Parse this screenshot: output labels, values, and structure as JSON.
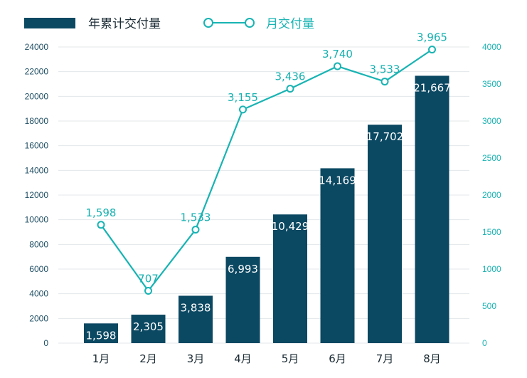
{
  "chart_data": {
    "type": "bar",
    "categories": [
      "1月",
      "2月",
      "3月",
      "4月",
      "5月",
      "6月",
      "7月",
      "8月"
    ],
    "series": [
      {
        "name": "年累计交付量",
        "type": "bar",
        "axis": "left",
        "color": "#0b4862",
        "values": [
          1598,
          2305,
          3838,
          6993,
          10429,
          14169,
          17702,
          21667
        ],
        "labels": [
          "1,598",
          "2,305",
          "3,838",
          "6,993",
          "10,429",
          "14,169",
          "17,702",
          "21,667"
        ]
      },
      {
        "name": "月交付量",
        "type": "line",
        "axis": "right",
        "color": "#19b3b3",
        "values": [
          1598,
          707,
          1533,
          3155,
          3436,
          3740,
          3533,
          3965
        ],
        "labels": [
          "1,598",
          "707",
          "1,533",
          "3,155",
          "3,436",
          "3,740",
          "3,533",
          "3,965"
        ]
      }
    ],
    "y_left": {
      "ylim": [
        0,
        24000
      ],
      "ticks": [
        "0",
        "2000",
        "4000",
        "6000",
        "8000",
        "10000",
        "12000",
        "14000",
        "16000",
        "18000",
        "20000",
        "22000",
        "24000"
      ]
    },
    "y_right": {
      "ylim": [
        0,
        4000
      ],
      "ticks": [
        "0",
        "500",
        "1000",
        "1500",
        "2000",
        "2500",
        "3000",
        "3500",
        "4000"
      ]
    },
    "grid": true,
    "legend": "top-left",
    "title": "",
    "xlabel": "",
    "ylabel": ""
  }
}
